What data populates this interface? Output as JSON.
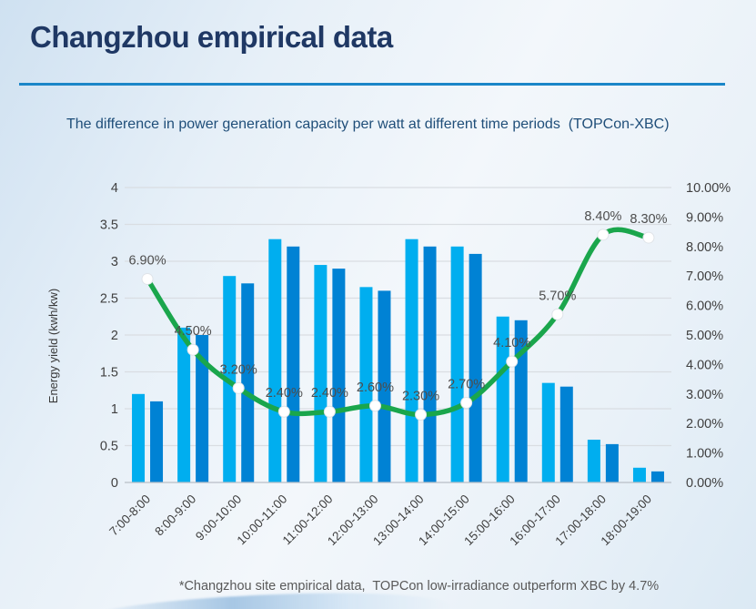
{
  "page": {
    "title": "Changzhou empirical data",
    "subtitle": "The difference in power generation capacity per watt at different time periods  (TOPCon-XBC)",
    "footnote": "*Changzhou site empirical data,  TOPCon low-irradiance outperform XBC by 4.7%"
  },
  "colors": {
    "title": "#1F3864",
    "underline": "#1B86C8",
    "subtitle": "#1F4E79",
    "footnote": "#595959"
  },
  "chart_data": {
    "type": "bar",
    "title": "The difference in power generation capacity per watt at different time periods (TOPCon-XBC)",
    "categories": [
      "7:00-8:00",
      "8:00-9:00",
      "9:00-10:00",
      "10:00-11:00",
      "11:00-12:00",
      "12:00-13:00",
      "13:00-14:00",
      "14:00-15:00",
      "15:00-16:00",
      "16:00-17:00",
      "17:00-18:00",
      "18:00-19:00"
    ],
    "series": [
      {
        "name": "light-blue-bars",
        "type": "bar",
        "axis": "left",
        "color": "#00AEEF",
        "values": [
          1.2,
          2.1,
          2.8,
          3.3,
          2.95,
          2.65,
          3.3,
          3.2,
          2.25,
          1.35,
          0.58,
          0.2
        ]
      },
      {
        "name": "dark-blue-bars",
        "type": "bar",
        "axis": "left",
        "color": "#0082D4",
        "values": [
          1.1,
          2.0,
          2.7,
          3.2,
          2.9,
          2.6,
          3.2,
          3.1,
          2.2,
          1.3,
          0.52,
          0.15
        ]
      },
      {
        "name": "green-difference-line",
        "type": "line",
        "axis": "right",
        "color": "#1AA64C",
        "marker_color": "#FFFFFF",
        "values": [
          6.9,
          4.5,
          3.2,
          2.4,
          2.4,
          2.6,
          2.3,
          2.7,
          4.1,
          5.7,
          8.4,
          8.3
        ],
        "labels": [
          "6.90%",
          "4.50%",
          "3.20%",
          "2.40%",
          "2.40%",
          "2.60%",
          "2.30%",
          "2.70%",
          "4.10%",
          "5.70%",
          "8.40%",
          "8.30%"
        ]
      }
    ],
    "left_axis": {
      "label": "Energy yield (kwh/kw)",
      "min": 0,
      "max": 4,
      "step": 0.5,
      "tick_values": [
        0,
        0.5,
        1,
        1.5,
        2,
        2.5,
        3,
        3.5,
        4
      ],
      "ticks": [
        "0",
        "0.5",
        "1",
        "1.5",
        "2",
        "2.5",
        "3",
        "3.5",
        "4"
      ]
    },
    "right_axis": {
      "min": 0,
      "max": 10,
      "step": 1,
      "tick_values": [
        0,
        1,
        2,
        3,
        4,
        5,
        6,
        7,
        8,
        9,
        10
      ],
      "ticks": [
        "0.00%",
        "1.00%",
        "2.00%",
        "3.00%",
        "4.00%",
        "5.00%",
        "6.00%",
        "7.00%",
        "8.00%",
        "9.00%",
        "10.00%"
      ]
    },
    "grid": true,
    "legend": "none",
    "style": {
      "grid_color": "#D9DDE2",
      "axis_line_color": "#B9BEC6",
      "axis_text_color": "#404040",
      "data_label_color": "#4D4D4D"
    }
  }
}
